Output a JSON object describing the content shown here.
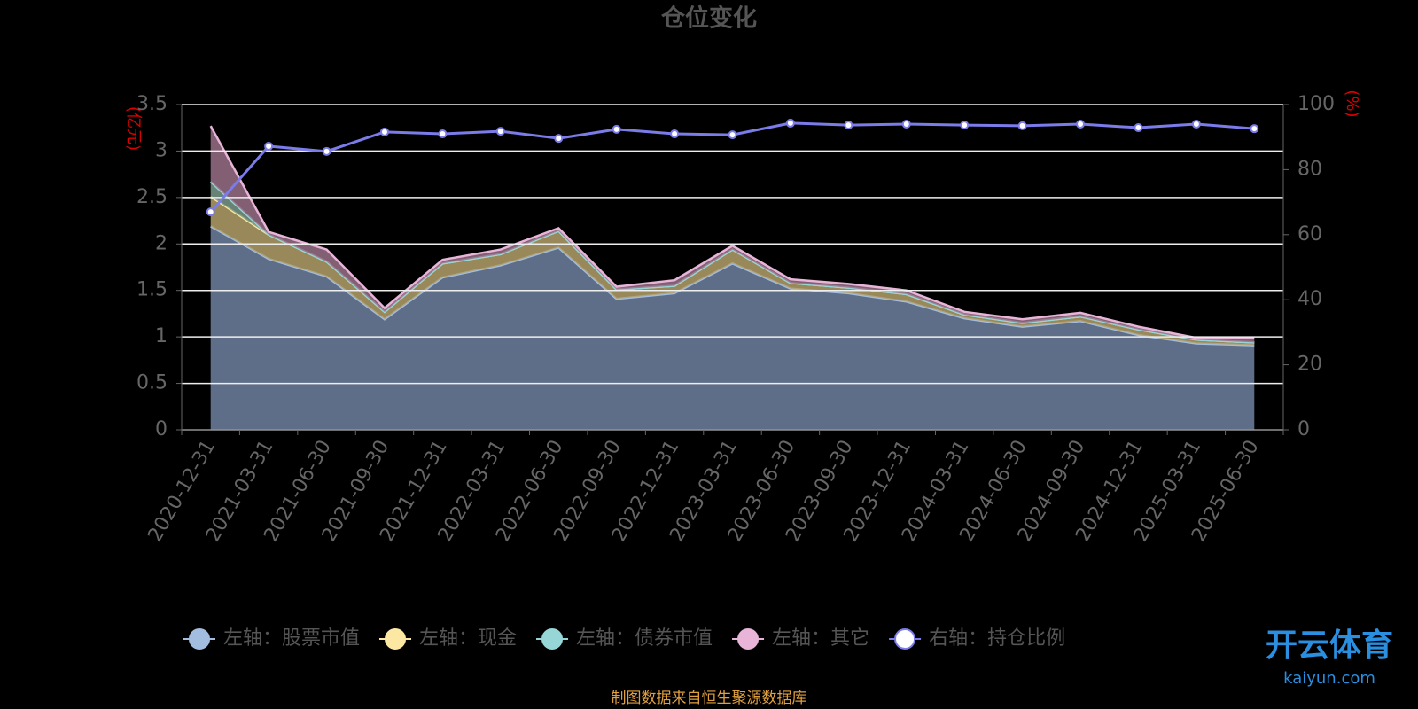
{
  "chart_data": {
    "type": "stacked-area-line",
    "title": "仓位变化",
    "y_label": "(亿元)",
    "y2_label": "(%)",
    "categories": [
      "2020-12-31",
      "2021-03-31",
      "2021-06-30",
      "2021-09-30",
      "2021-12-31",
      "2022-03-31",
      "2022-06-30",
      "2022-09-30",
      "2022-12-31",
      "2023-03-31",
      "2023-06-30",
      "2023-09-30",
      "2023-12-31",
      "2024-03-31",
      "2024-06-30",
      "2024-09-30",
      "2024-12-31",
      "2025-03-31",
      "2025-06-30"
    ],
    "series": [
      {
        "name": "左轴：股票市值",
        "color": "#a3bde0",
        "fill": "#6e81a0",
        "axis": "y",
        "values": [
          2.19,
          1.84,
          1.65,
          1.19,
          1.64,
          1.77,
          1.96,
          1.41,
          1.47,
          1.79,
          1.52,
          1.47,
          1.38,
          1.2,
          1.11,
          1.17,
          1.02,
          0.93,
          0.91
        ]
      },
      {
        "name": "左轴：现金",
        "color": "#fce8a3",
        "fill": "#b3a06a",
        "axis": "y",
        "values": [
          0.32,
          0.26,
          0.16,
          0.08,
          0.15,
          0.12,
          0.18,
          0.1,
          0.08,
          0.15,
          0.06,
          0.06,
          0.08,
          0.04,
          0.04,
          0.05,
          0.06,
          0.04,
          0.03
        ]
      },
      {
        "name": "左轴：债券市值",
        "color": "#96d6d6",
        "fill": "#7a9a8a",
        "axis": "y",
        "values": [
          0.16,
          0,
          0,
          0,
          0,
          0,
          0,
          0,
          0,
          0,
          0,
          0,
          0,
          0,
          0,
          0,
          0,
          0,
          0
        ]
      },
      {
        "name": "左轴：其它",
        "color": "#e8b4d8",
        "fill": "#9a7088",
        "axis": "y",
        "values": [
          0.6,
          0.03,
          0.13,
          0.04,
          0.04,
          0.05,
          0.03,
          0.03,
          0.06,
          0.04,
          0.04,
          0.04,
          0.04,
          0.03,
          0.04,
          0.04,
          0.03,
          0.02,
          0.05
        ]
      },
      {
        "name": "右轴：持仓比例",
        "color": "#7b7bea",
        "axis": "y2",
        "values": [
          67.0,
          87.2,
          85.6,
          91.6,
          91.0,
          91.8,
          89.6,
          92.4,
          91.0,
          90.7,
          94.3,
          93.7,
          94.0,
          93.7,
          93.5,
          94.0,
          92.9,
          94.0,
          92.6
        ]
      }
    ],
    "ylim": [
      0,
      3.5
    ],
    "yticks": [
      0,
      0.5,
      1,
      1.5,
      2,
      2.5,
      3,
      3.5
    ],
    "y2lim": [
      0,
      100
    ],
    "y2ticks": [
      0,
      20,
      40,
      60,
      80,
      100
    ],
    "grid": true,
    "legend": "bottom",
    "source": "制图数据来自恒生聚源数据库",
    "watermark": {
      "name": "开云体育",
      "url": "kaiyun.com"
    }
  }
}
